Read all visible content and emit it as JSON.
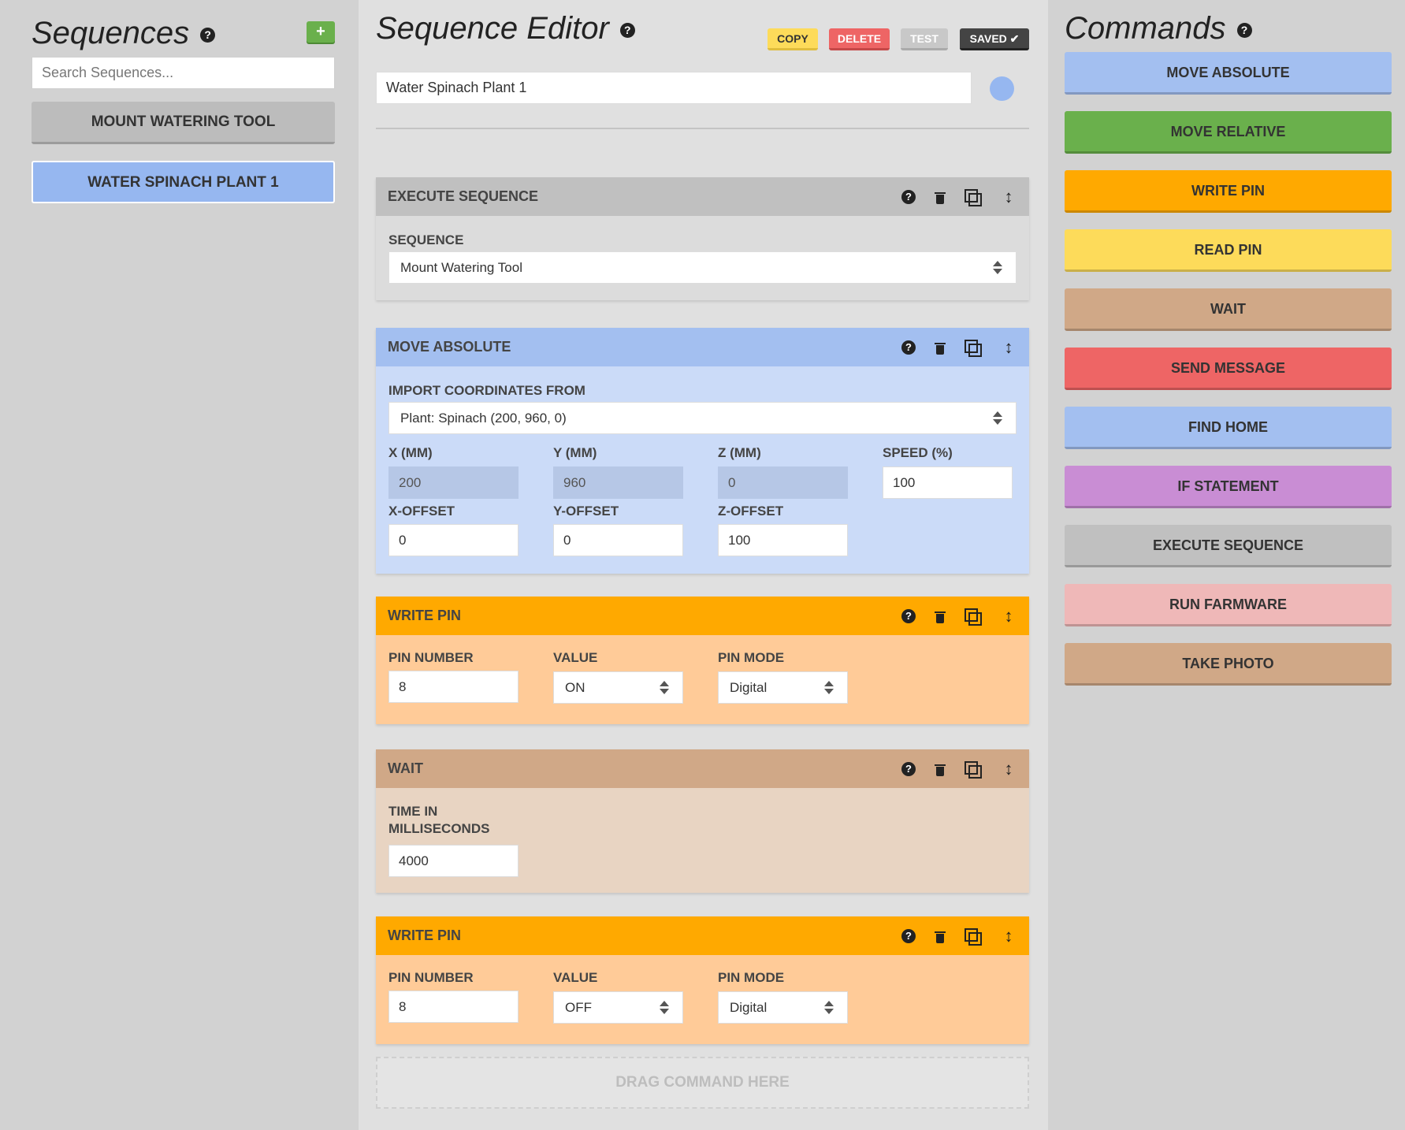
{
  "sequences_panel": {
    "title": "Sequences",
    "add_label": "+",
    "search_placeholder": "Search Sequences...",
    "items": [
      {
        "label": "MOUNT WATERING TOOL",
        "color": "#bcbcbc"
      },
      {
        "label": "WATER SPINACH PLANT 1",
        "color": "#96b7f0",
        "selected": true
      }
    ]
  },
  "editor": {
    "title": "Sequence Editor",
    "buttons": {
      "copy": "COPY",
      "delete": "DELETE",
      "test": "TEST",
      "saved": "SAVED ✔"
    },
    "sequence_name": "Water Spinach Plant 1",
    "sequence_color": "#96b7f0",
    "steps": [
      {
        "type": "EXECUTE SEQUENCE",
        "color": "#c0c0c0",
        "sequence_label": "SEQUENCE",
        "sequence_value": "Mount Watering Tool"
      },
      {
        "type": "MOVE ABSOLUTE",
        "color": "#a3bff0",
        "import_label": "IMPORT COORDINATES FROM",
        "import_value": "Plant: Spinach (200, 960, 0)",
        "x_label": "X (MM)",
        "x_value": "200",
        "y_label": "Y (MM)",
        "y_value": "960",
        "z_label": "Z (MM)",
        "z_value": "0",
        "speed_label": "SPEED (%)",
        "speed_value": "100",
        "xo_label": "X-OFFSET",
        "xo_value": "0",
        "yo_label": "Y-OFFSET",
        "yo_value": "0",
        "zo_label": "Z-OFFSET",
        "zo_value": "100"
      },
      {
        "type": "WRITE PIN",
        "color": "#ffa900",
        "pin_label": "PIN NUMBER",
        "pin_value": "8",
        "value_label": "VALUE",
        "value_value": "ON",
        "mode_label": "PIN MODE",
        "mode_value": "Digital"
      },
      {
        "type": "WAIT",
        "color": "#d0a887",
        "time_label_1": "TIME IN",
        "time_label_2": "MILLISECONDS",
        "time_value": "4000"
      },
      {
        "type": "WRITE PIN",
        "color": "#ffa900",
        "pin_label": "PIN NUMBER",
        "pin_value": "8",
        "value_label": "VALUE",
        "value_value": "OFF",
        "mode_label": "PIN MODE",
        "mode_value": "Digital"
      }
    ],
    "drop_zone": "DRAG COMMAND HERE"
  },
  "commands_panel": {
    "title": "Commands",
    "items": [
      {
        "label": "MOVE ABSOLUTE",
        "color": "#a3bff0"
      },
      {
        "label": "MOVE RELATIVE",
        "color": "#6ab04c"
      },
      {
        "label": "WRITE PIN",
        "color": "#ffa900"
      },
      {
        "label": "READ PIN",
        "color": "#fddb5a"
      },
      {
        "label": "WAIT",
        "color": "#d0a887"
      },
      {
        "label": "SEND MESSAGE",
        "color": "#ee6565"
      },
      {
        "label": "FIND HOME",
        "color": "#a3bff0"
      },
      {
        "label": "IF STATEMENT",
        "color": "#c98dd4"
      },
      {
        "label": "EXECUTE SEQUENCE",
        "color": "#c0c0c0"
      },
      {
        "label": "RUN FARMWARE",
        "color": "#efb8b8"
      },
      {
        "label": "TAKE PHOTO",
        "color": "#d0a887"
      }
    ]
  }
}
